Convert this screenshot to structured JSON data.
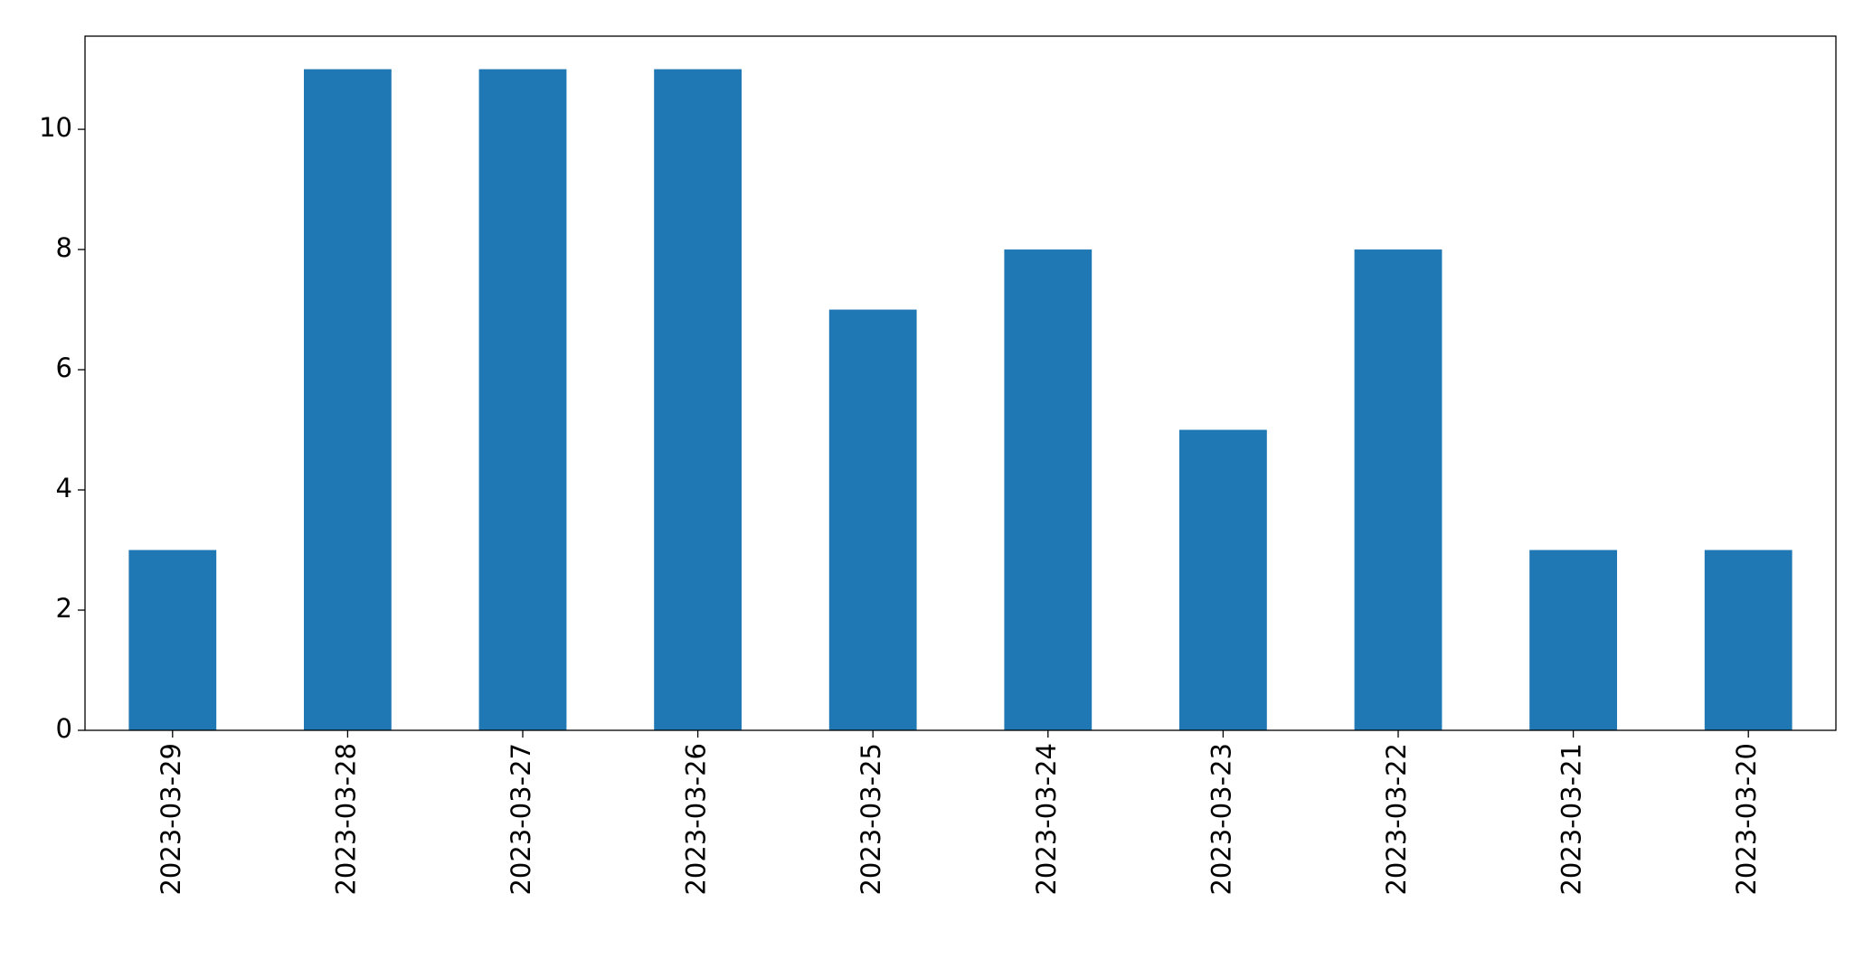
{
  "chart_data": {
    "type": "bar",
    "categories": [
      "2023-03-29",
      "2023-03-28",
      "2023-03-27",
      "2023-03-26",
      "2023-03-25",
      "2023-03-24",
      "2023-03-23",
      "2023-03-22",
      "2023-03-21",
      "2023-03-20"
    ],
    "values": [
      3,
      11,
      11,
      11,
      7,
      8,
      5,
      8,
      3,
      3
    ],
    "color": "#1f77b4",
    "ylim": [
      0,
      11.55
    ],
    "yticks": [
      0,
      2,
      4,
      6,
      8,
      10
    ],
    "grid": false
  }
}
